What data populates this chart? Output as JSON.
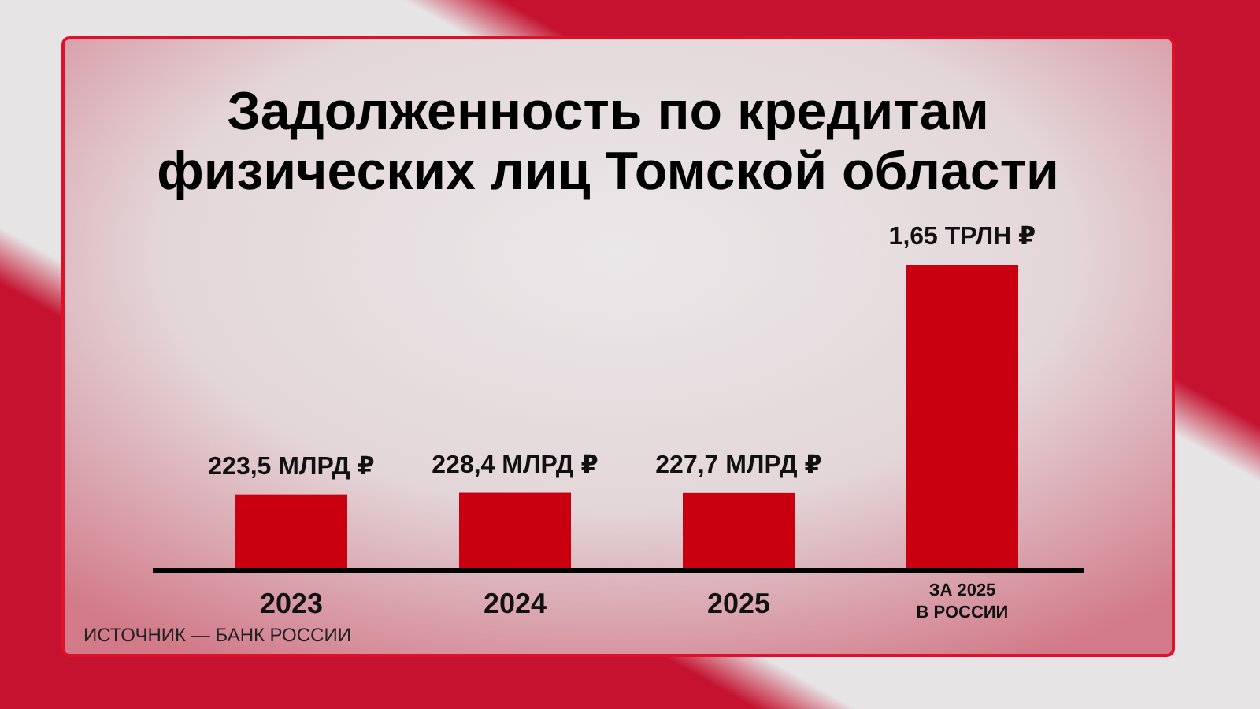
{
  "chart_data": {
    "type": "bar",
    "title": "Задолженность по кредитам\nфизических лиц Томской области",
    "categories": [
      "2023",
      "2024",
      "2025",
      "ЗА 2025\nВ РОССИИ"
    ],
    "series": [
      {
        "color": "#c9000f",
        "values": [
          223.5,
          228.4,
          227.7,
          null
        ],
        "value_labels": [
          "223,5 МЛРД ₽",
          "228,4 МЛРД ₽",
          "227,7 МЛРД ₽",
          null
        ]
      },
      {
        "color": "#c9000f",
        "axis": "y2",
        "values": [
          null,
          null,
          null,
          1.65
        ],
        "value_labels": [
          null,
          null,
          null,
          "1,65 ТРЛН ₽"
        ]
      }
    ],
    "ylim": [
      0,
      900
    ],
    "y2lim": [
      0,
      1.65
    ],
    "annotations": [
      "ИСТОЧНИК — БАНК РОССИИ"
    ]
  }
}
